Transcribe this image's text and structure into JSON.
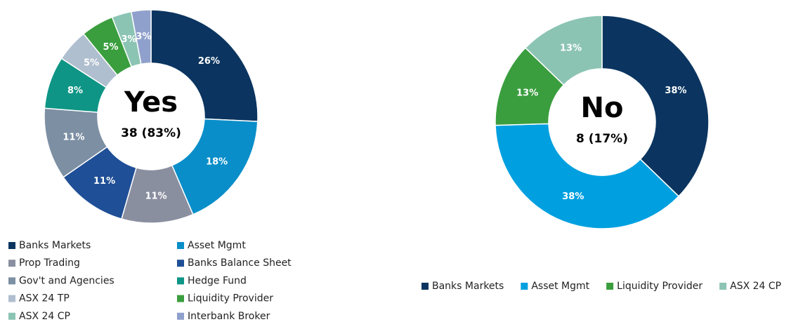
{
  "chart_data": [
    {
      "type": "pie",
      "title": "Yes",
      "subtitle": "38 (83%)",
      "categories": [
        "Banks Markets",
        "Asset Mgmt",
        "Prop Trading",
        "Banks Balance Sheet",
        "Gov't and Agencies",
        "Hedge Fund",
        "ASX 24 TP",
        "Liquidity Provider",
        "ASX 24 CP",
        "Interbank Broker"
      ],
      "values": [
        26,
        18,
        11,
        11,
        11,
        8,
        5,
        5,
        3,
        3
      ],
      "value_labels": [
        "26%",
        "18%",
        "11%",
        "11%",
        "11%",
        "8%",
        "5%",
        "5%",
        "3%",
        "3%"
      ],
      "colors": [
        "#0b3560",
        "#0a8ec9",
        "#8a8fa0",
        "#1f4f96",
        "#7d8fa3",
        "#0e9585",
        "#b0bfcf",
        "#3a9e3e",
        "#8cc4b4",
        "#8fa0cc"
      ]
    },
    {
      "type": "pie",
      "title": "No",
      "subtitle": "8 (17%)",
      "categories": [
        "Banks Markets",
        "Asset Mgmt",
        "Liquidity Provider",
        "ASX 24 CP"
      ],
      "values": [
        38,
        38,
        13,
        13
      ],
      "value_labels": [
        "38%",
        "38%",
        "13%",
        "13%"
      ],
      "colors": [
        "#0b3560",
        "#00a0e0",
        "#3a9e3e",
        "#8cc4b4"
      ]
    }
  ]
}
